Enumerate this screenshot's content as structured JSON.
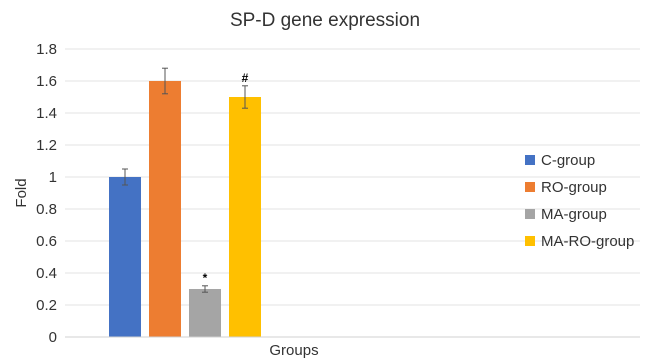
{
  "chart_data": {
    "type": "bar",
    "title": "SP-D gene expression",
    "xlabel": "Groups",
    "ylabel": "Fold",
    "ylim": [
      0,
      1.8
    ],
    "yticks": [
      "0",
      "0.2",
      "0.4",
      "0.6",
      "0.8",
      "1",
      "1.2",
      "1.4",
      "1.6",
      "1.8"
    ],
    "grid": true,
    "legend_position": "right",
    "series": [
      {
        "name": "C-group",
        "value": 1.0,
        "error": 0.05,
        "color": "#4472C4",
        "annotation": ""
      },
      {
        "name": "RO-group",
        "value": 1.6,
        "error": 0.08,
        "color": "#ED7D31",
        "annotation": ""
      },
      {
        "name": "MA-group",
        "value": 0.3,
        "error": 0.02,
        "color": "#A5A5A5",
        "annotation": "*"
      },
      {
        "name": "MA-RO-group",
        "value": 1.5,
        "error": 0.07,
        "color": "#FFC000",
        "annotation": "#"
      }
    ]
  }
}
